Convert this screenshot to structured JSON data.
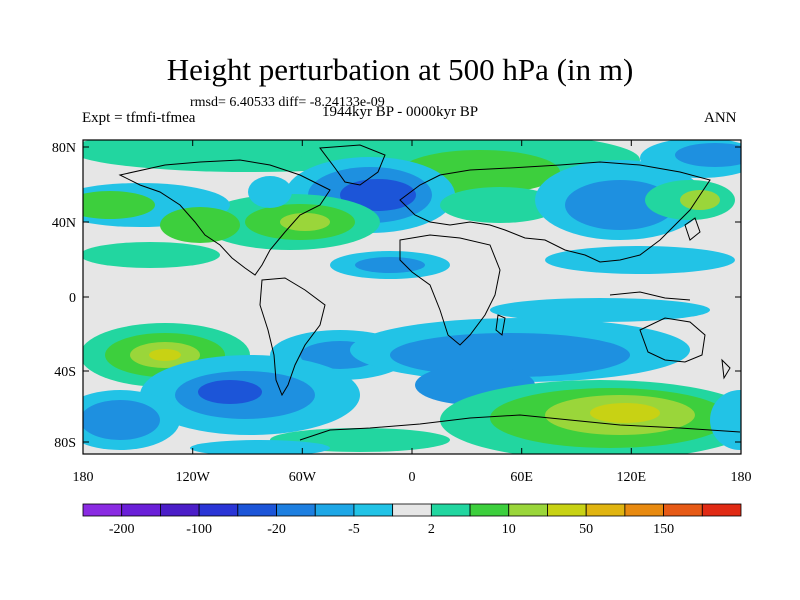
{
  "title": "Height perturbation at 500 hPa (in m)",
  "stats": "rmsd= 6.40533  diff= -8.24133e-09",
  "experiment": "Expt = tfmfi-tfmea",
  "period": "1944kyr BP - 0000kyr BP",
  "season": "ANN",
  "lat_ticks": [
    "80N",
    "40N",
    "0",
    "40S",
    "80S"
  ],
  "lon_ticks": [
    "180",
    "120W",
    "60W",
    "0",
    "60E",
    "120E",
    "180"
  ],
  "colorbar": {
    "colors": [
      "#8a2be2",
      "#6a1fd8",
      "#4b1ec8",
      "#2a35d6",
      "#1c55d8",
      "#1d7fe0",
      "#1ea7e6",
      "#22c3e6",
      "#e6e6e6",
      "#22d6a0",
      "#3dcf3d",
      "#9ad63a",
      "#c8d214",
      "#e0b410",
      "#e88a10",
      "#e65a16",
      "#e02a14"
    ],
    "labels": [
      "-200",
      "-100",
      "-20",
      "-5",
      "2",
      "10",
      "50",
      "150"
    ]
  },
  "colors": {
    "background_field": "#e6e6e6",
    "negative_strong": "#1c55d8",
    "negative_mid": "#1e90e0",
    "negative_weak": "#22c3e6",
    "positive_weak": "#22d6a0",
    "positive_mid": "#3dcf3d",
    "positive_strong": "#9ad63a",
    "positive_peak": "#c8d214",
    "coastline": "#000000"
  }
}
